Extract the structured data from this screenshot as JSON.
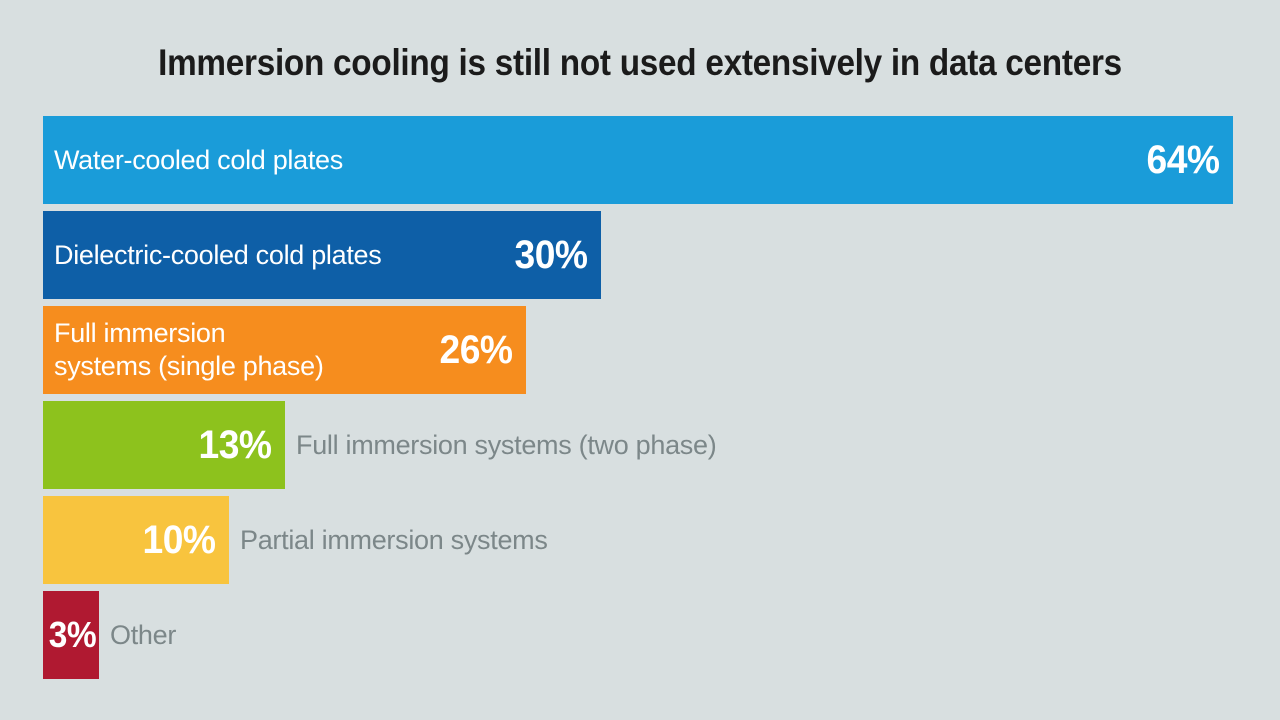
{
  "background_color": "#d8dfe0",
  "text_colors": {
    "title": "#1b1b1b",
    "value_labels": "#ffffff",
    "outside_labels": "#7c8789"
  },
  "chart_data": {
    "type": "bar",
    "orientation": "horizontal",
    "title": "Immersion cooling is still not used extensively in data centers",
    "unit": "%",
    "value_axis_visible": false,
    "grid": false,
    "legend": false,
    "categories": [
      "Water-cooled cold plates",
      "Dielectric-cooled cold plates",
      "Full immersion systems (single phase)",
      "Full immersion systems (two phase)",
      "Partial immersion systems",
      "Other"
    ],
    "values": [
      64,
      30,
      26,
      13,
      10,
      3
    ],
    "bars": [
      {
        "label": "Water-cooled cold plates",
        "value": 64,
        "display_value": "64%",
        "color": "#1a9cd9",
        "label_position": "inside"
      },
      {
        "label": "Dielectric-cooled cold plates",
        "value": 30,
        "display_value": "30%",
        "color": "#0e5fa7",
        "label_position": "inside"
      },
      {
        "label": "Full immersion\nsystems (single phase)",
        "value": 26,
        "display_value": "26%",
        "color": "#f68d1e",
        "label_position": "inside"
      },
      {
        "label": "Full immersion systems (two phase)",
        "value": 13,
        "display_value": "13%",
        "color": "#8dc21d",
        "label_position": "outside"
      },
      {
        "label": "Partial immersion systems",
        "value": 10,
        "display_value": "10%",
        "color": "#f8c43e",
        "label_position": "outside"
      },
      {
        "label": "Other",
        "value": 3,
        "display_value": "3%",
        "color": "#b01931",
        "label_position": "outside"
      }
    ]
  }
}
